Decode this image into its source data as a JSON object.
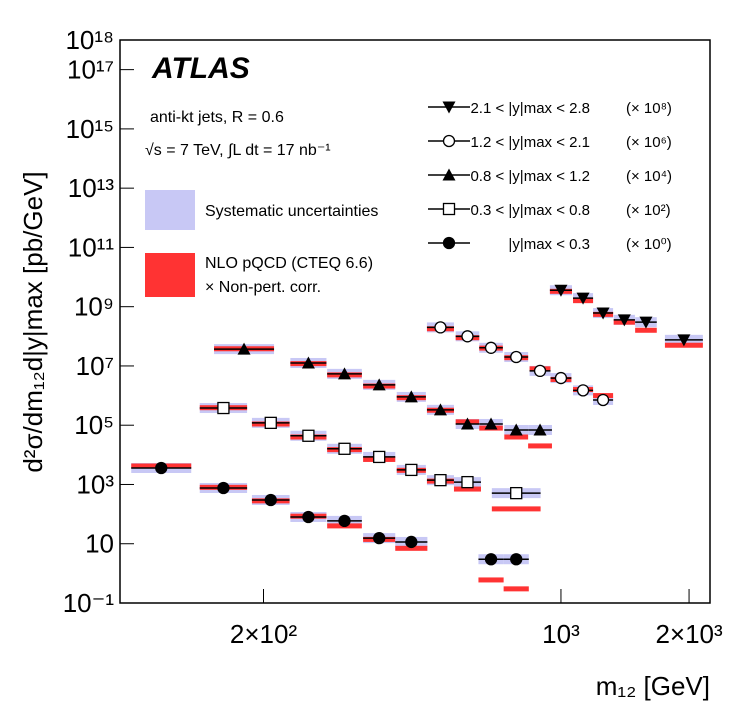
{
  "chart_data": {
    "type": "scatter",
    "x_label": "m₁₂ [GeV]",
    "y_label": "d²σ/dm₁₂d|y|max [pb/GeV]",
    "log_x": true,
    "log_y": true,
    "xlim": [
      92,
      2240
    ],
    "ylim": [
      0.1,
      1e+18
    ],
    "xticks": [
      {
        "value": 200,
        "label": "2×10²"
      },
      {
        "value": 1000,
        "label": "10³"
      },
      {
        "value": 2000,
        "label": "2×10³"
      }
    ],
    "yticks": [
      {
        "value": 1e+18,
        "label": "10¹⁸"
      },
      {
        "value": 1e+17,
        "label": "10¹⁷"
      },
      {
        "value": 1000000000000000.0,
        "label": "10¹⁵"
      },
      {
        "value": 10000000000000.0,
        "label": "10¹³"
      },
      {
        "value": 100000000000.0,
        "label": "10¹¹"
      },
      {
        "value": 1000000000.0,
        "label": "10⁹"
      },
      {
        "value": 10000000.0,
        "label": "10⁷"
      },
      {
        "value": 100000.0,
        "label": "10⁵"
      },
      {
        "value": 1000,
        "label": "10³"
      },
      10,
      {
        "value": 0.1,
        "label": "10⁻¹"
      }
    ],
    "annotations": [
      "ATLAS",
      "anti-kt jets, R = 0.6",
      "√s = 7 TeV, ∫L dt = 17 nb⁻¹"
    ],
    "band_legend": [
      "Systematic uncertainties",
      "NLO pQCD (CTEQ 6.6)",
      "× Non-pert. corr."
    ],
    "band_colors": [
      "#c8c8f5",
      "#ff3333"
    ],
    "series": [
      {
        "name": "2.1 < |y|max < 2.8",
        "multiplier": "(× 10⁸)",
        "marker": "triangle-down",
        "color": "#000000",
        "x": [
          1000,
          1127,
          1256,
          1409,
          1584,
          1945
        ],
        "values": [
          3600000000.0,
          1950000000.0,
          610000000.0,
          360000000.0,
          300000000.0,
          76000000.0
        ],
        "theory": [
          3300000000.0,
          1600000000.0,
          550000000.0,
          300000000.0,
          160000000.0,
          50000000.0
        ]
      },
      {
        "name": "1.2 < |y|max < 2.1",
        "multiplier": "(× 10⁶)",
        "marker": "circle-open",
        "color": "#000000",
        "x": [
          521,
          603,
          685,
          785,
          893,
          1000,
          1127,
          1256
        ],
        "values": [
          200000000.0,
          100000000.0,
          41000000.0,
          20000000.0,
          6800000.0,
          3900000.0,
          1500000.0,
          710000.0
        ],
        "theory": [
          180000000.0,
          90000000.0,
          40000000.0,
          19000000.0,
          8000000.0,
          3500000.0,
          1600000.0,
          1000000.0
        ]
      },
      {
        "name": "0.8 < |y|max < 1.2",
        "multiplier": "(× 10⁴)",
        "marker": "triangle-up",
        "color": "#000000",
        "x": [
          180,
          255,
          310,
          374,
          445,
          521,
          603,
          685,
          785,
          893
        ],
        "values": [
          37000000.0,
          12600000.0,
          5400000.0,
          2300000.0,
          900000.0,
          330000.0,
          110000.0,
          110000.0,
          69000.0,
          69000.0
        ],
        "theory": [
          38000000.0,
          12000000.0,
          5000000.0,
          2100000.0,
          850000.0,
          320000.0,
          130000.0,
          80000.0,
          40000.0,
          20000.0
        ]
      },
      {
        "name": "0.3 < |y|max < 0.8",
        "multiplier": "(× 10²)",
        "marker": "square-open",
        "color": "#000000",
        "x": [
          161,
          208,
          255,
          310,
          374,
          445,
          521,
          603,
          785
        ],
        "values": [
          380000.0,
          120000.0,
          44000.0,
          16000.0,
          8500,
          3100,
          1400,
          1200,
          510
        ],
        "theory": [
          390000.0,
          110000.0,
          40000.0,
          15000.0,
          7000,
          3000,
          1300,
          700,
          150
        ]
      },
      {
        "name": "|y|max < 0.3",
        "multiplier": "(× 10⁰)",
        "marker": "circle",
        "color": "#000000",
        "x": [
          115,
          161,
          208,
          255,
          310,
          374,
          445,
          685,
          785
        ],
        "values": [
          3600,
          760,
          300,
          80,
          59,
          15.5,
          11.5,
          3.0,
          3.0
        ],
        "theory": [
          4200,
          800,
          280,
          85,
          40,
          14,
          7,
          0.6,
          0.3
        ]
      }
    ]
  }
}
